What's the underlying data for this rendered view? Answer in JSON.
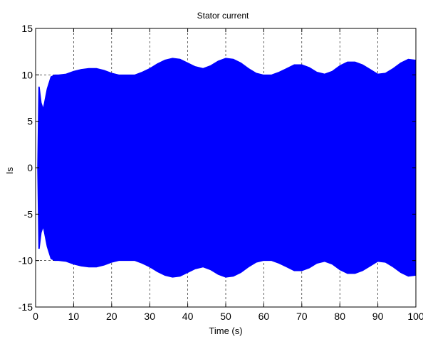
{
  "chart_data": {
    "type": "area",
    "title": "Stator current",
    "xlabel": "Time (s)",
    "ylabel": "Is",
    "xlim": [
      0,
      100
    ],
    "ylim": [
      -15,
      15
    ],
    "xticks": [
      0,
      10,
      20,
      30,
      40,
      50,
      60,
      70,
      80,
      90,
      100
    ],
    "yticks": [
      -15,
      -10,
      -5,
      0,
      5,
      10,
      15
    ],
    "grid": true,
    "fill_color": "#0000ff",
    "series": [
      {
        "name": "",
        "x": [
          0.5,
          0.8,
          1.0,
          1.5,
          2.0,
          3.0,
          4.0,
          5.0,
          6.0,
          8.0,
          10.0,
          12.0,
          14.0,
          16.0,
          18.0,
          20.0,
          22.0,
          24.0,
          26.0,
          28.0,
          30.0,
          32.0,
          34.0,
          36.0,
          38.0,
          40.0,
          42.0,
          44.0,
          46.0,
          48.0,
          50.0,
          52.0,
          54.0,
          56.0,
          58.0,
          60.0,
          62.0,
          64.0,
          66.0,
          68.0,
          70.0,
          72.0,
          74.0,
          76.0,
          78.0,
          80.0,
          82.0,
          84.0,
          86.0,
          88.0,
          90.0,
          92.0,
          94.0,
          96.0,
          98.0,
          100.0
        ],
        "upper": [
          0.0,
          8.7,
          8.7,
          7.0,
          6.4,
          8.5,
          9.8,
          10.0,
          10.0,
          10.1,
          10.4,
          10.6,
          10.7,
          10.7,
          10.5,
          10.2,
          10.0,
          10.0,
          10.0,
          10.3,
          10.7,
          11.2,
          11.6,
          11.8,
          11.7,
          11.3,
          10.9,
          10.7,
          11.0,
          11.5,
          11.8,
          11.7,
          11.3,
          10.7,
          10.2,
          10.0,
          10.0,
          10.3,
          10.7,
          11.1,
          11.1,
          10.8,
          10.3,
          10.1,
          10.4,
          11.0,
          11.4,
          11.4,
          11.1,
          10.6,
          10.1,
          10.2,
          10.7,
          11.3,
          11.7,
          11.6
        ],
        "lower": [
          0.0,
          -8.7,
          -8.7,
          -7.0,
          -6.4,
          -8.5,
          -9.8,
          -10.0,
          -10.0,
          -10.1,
          -10.4,
          -10.6,
          -10.7,
          -10.7,
          -10.5,
          -10.2,
          -10.0,
          -10.0,
          -10.0,
          -10.3,
          -10.7,
          -11.2,
          -11.6,
          -11.8,
          -11.7,
          -11.3,
          -10.9,
          -10.7,
          -11.0,
          -11.5,
          -11.8,
          -11.7,
          -11.3,
          -10.7,
          -10.2,
          -10.0,
          -10.0,
          -10.3,
          -10.7,
          -11.1,
          -11.1,
          -10.8,
          -10.3,
          -10.1,
          -10.4,
          -11.0,
          -11.4,
          -11.4,
          -11.1,
          -10.6,
          -10.1,
          -10.2,
          -10.7,
          -11.3,
          -11.7,
          -11.6
        ]
      }
    ]
  }
}
